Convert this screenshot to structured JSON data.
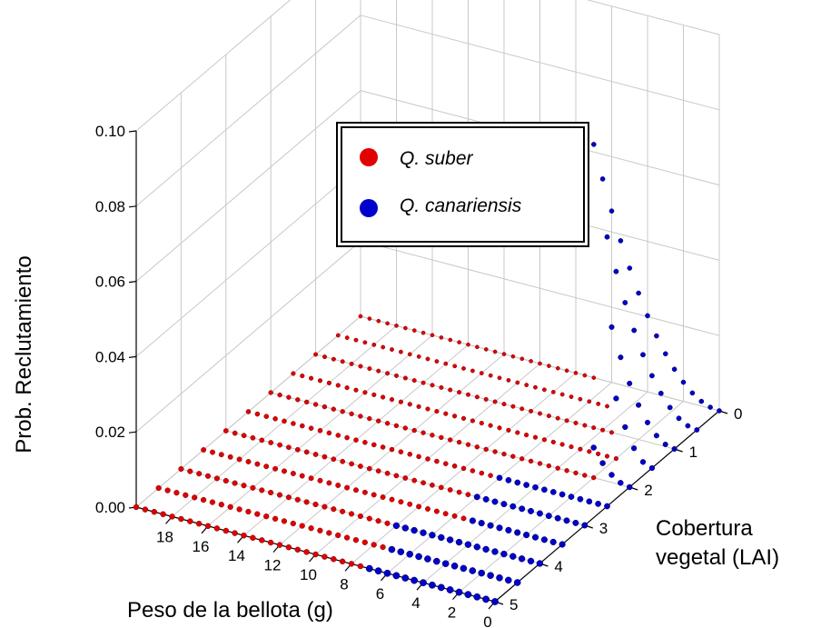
{
  "chart_data": {
    "type": "scatter",
    "projection": "3d",
    "xlabel": "Peso de la bellota (g)",
    "ylabel": "Cobertura vegetal (LAI)",
    "zlabel": "Prob. Reclutamiento",
    "x_ticks": [
      "18",
      "16",
      "14",
      "12",
      "10",
      "8",
      "6",
      "4",
      "2",
      "0"
    ],
    "y_ticks": [
      "0",
      "1",
      "2",
      "3",
      "4",
      "5"
    ],
    "z_ticks": [
      "0.00",
      "0.02",
      "0.04",
      "0.06",
      "0.08",
      "0.10"
    ],
    "xlim": [
      0,
      20
    ],
    "ylim": [
      0,
      5
    ],
    "zlim": [
      0,
      0.1
    ],
    "grid": true,
    "legend_position": "top-center",
    "series": [
      {
        "name": "Q. suber",
        "color": "#e00000",
        "rows": [
          {
            "lai": 0.0,
            "x_range": [
              7.0,
              20.0
            ],
            "prob": 0.0
          },
          {
            "lai": 0.5,
            "x_range": [
              5.0,
              20.0
            ],
            "prob": 0.0
          },
          {
            "lai": 1.0,
            "x_range": [
              3.5,
              20.0
            ],
            "prob": 0.0
          },
          {
            "lai": 1.5,
            "x_range": [
              2.0,
              20.0
            ],
            "prob": 0.0
          },
          {
            "lai": 2.0,
            "x_range": [
              2.0,
              20.0
            ],
            "prob": 0.0
          },
          {
            "lai": 2.5,
            "x_range": [
              6.0,
              20.0
            ],
            "prob": 0.0
          },
          {
            "lai": 3.0,
            "x_range": [
              6.0,
              20.0
            ],
            "prob": 0.0
          },
          {
            "lai": 3.5,
            "x_range": [
              5.0,
              20.0
            ],
            "prob": 0.0
          },
          {
            "lai": 4.0,
            "x_range": [
              8.0,
              20.0
            ],
            "prob": 0.0
          },
          {
            "lai": 4.5,
            "x_range": [
              7.0,
              20.0
            ],
            "prob": 0.0
          },
          {
            "lai": 5.0,
            "x_range": [
              7.0,
              20.0
            ],
            "prob": 0.0
          }
        ]
      },
      {
        "name": "Q. canariensis",
        "color": "#0000cc",
        "rows": [
          {
            "lai": 0.0,
            "x_range": [
              0.0,
              7.0
            ],
            "prob_at_x0": 0.0,
            "edge_prob": 0.062
          },
          {
            "lai": 0.5,
            "x_range": [
              0.0,
              5.0
            ],
            "prob_at_x0": 0.0,
            "edge_prob": 0.045
          },
          {
            "lai": 1.0,
            "x_range": [
              0.0,
              3.5
            ],
            "prob_at_x0": 0.0,
            "edge_prob": 0.028
          },
          {
            "lai": 1.5,
            "x_range": [
              0.0,
              2.0
            ],
            "prob_at_x0": 0.0,
            "edge_prob": 0.016
          },
          {
            "lai": 2.0,
            "x_range": [
              0.0,
              2.0
            ],
            "prob_at_x0": 0.0,
            "edge_prob": 0.008
          },
          {
            "lai": 2.5,
            "x_range": [
              0.0,
              6.0
            ],
            "prob_at_x0": 0.0,
            "edge_prob": 0.0
          },
          {
            "lai": 3.0,
            "x_range": [
              0.0,
              6.0
            ],
            "prob_at_x0": 0.0,
            "edge_prob": 0.0
          },
          {
            "lai": 3.5,
            "x_range": [
              0.0,
              5.0
            ],
            "prob_at_x0": 0.0,
            "edge_prob": 0.0
          },
          {
            "lai": 4.0,
            "x_range": [
              0.0,
              8.0
            ],
            "prob_at_x0": 0.0,
            "edge_prob": 0.0
          },
          {
            "lai": 4.5,
            "x_range": [
              0.0,
              7.0
            ],
            "prob_at_x0": 0.0,
            "edge_prob": 0.0
          },
          {
            "lai": 5.0,
            "x_range": [
              0.0,
              7.0
            ],
            "prob_at_x0": 0.0,
            "edge_prob": 0.0
          }
        ]
      }
    ],
    "legend": [
      {
        "label": "Q. suber",
        "color": "#e00000"
      },
      {
        "label": "Q. canariensis",
        "color": "#0000cc"
      }
    ]
  }
}
